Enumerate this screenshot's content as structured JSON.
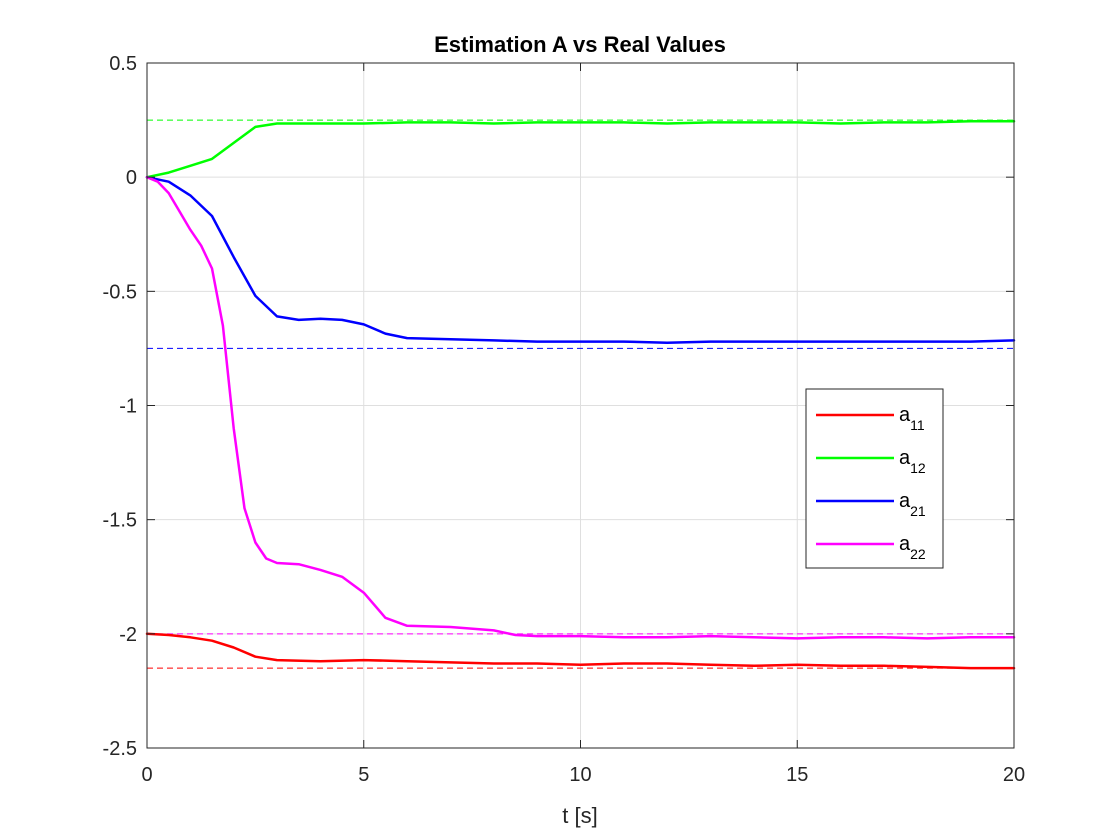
{
  "chart_data": {
    "type": "line",
    "title": "Estimation A vs Real Values",
    "xlabel": "t [s]",
    "ylabel": "",
    "xlim": [
      0,
      20
    ],
    "ylim": [
      -2.5,
      0.5
    ],
    "xticks": [
      "0",
      "5",
      "10",
      "15",
      "20"
    ],
    "yticks": [
      "0.5",
      "0",
      "-0.5",
      "-1",
      "-1.5",
      "-2",
      "-2.5"
    ],
    "grid": true,
    "legend_position": "right",
    "series": [
      {
        "name": "a",
        "subscript": "11",
        "color": "#ff0000",
        "x": [
          0,
          0.5,
          1,
          1.5,
          2,
          2.5,
          3,
          4,
          5,
          6,
          7,
          8,
          9,
          10,
          11,
          12,
          13,
          14,
          15,
          16,
          17,
          18,
          19,
          20
        ],
        "values": [
          -2.0,
          -2.005,
          -2.015,
          -2.03,
          -2.06,
          -2.1,
          -2.115,
          -2.12,
          -2.115,
          -2.12,
          -2.125,
          -2.13,
          -2.13,
          -2.135,
          -2.13,
          -2.13,
          -2.135,
          -2.14,
          -2.135,
          -2.14,
          -2.14,
          -2.145,
          -2.15,
          -2.15
        ]
      },
      {
        "name": "a",
        "subscript": "12",
        "color": "#00ff00",
        "x": [
          0,
          0.5,
          1,
          1.5,
          2,
          2.5,
          3,
          4,
          5,
          6,
          7,
          8,
          9,
          10,
          11,
          12,
          13,
          14,
          15,
          16,
          17,
          18,
          19,
          20
        ],
        "values": [
          0.0,
          0.02,
          0.05,
          0.08,
          0.15,
          0.22,
          0.235,
          0.235,
          0.235,
          0.24,
          0.24,
          0.235,
          0.24,
          0.24,
          0.24,
          0.235,
          0.24,
          0.24,
          0.24,
          0.235,
          0.24,
          0.24,
          0.245,
          0.245
        ]
      },
      {
        "name": "a",
        "subscript": "21",
        "color": "#0000ff",
        "x": [
          0,
          0.5,
          1,
          1.5,
          2,
          2.5,
          3,
          3.5,
          4,
          4.5,
          5,
          5.5,
          6,
          7,
          8,
          9,
          10,
          11,
          12,
          13,
          14,
          15,
          16,
          17,
          18,
          19,
          20
        ],
        "values": [
          0.0,
          -0.02,
          -0.08,
          -0.17,
          -0.35,
          -0.52,
          -0.61,
          -0.625,
          -0.62,
          -0.625,
          -0.645,
          -0.685,
          -0.705,
          -0.71,
          -0.715,
          -0.72,
          -0.72,
          -0.72,
          -0.725,
          -0.72,
          -0.72,
          -0.72,
          -0.72,
          -0.72,
          -0.72,
          -0.72,
          -0.715
        ]
      },
      {
        "name": "a",
        "subscript": "22",
        "color": "#ff00ff",
        "x": [
          0,
          0.25,
          0.5,
          0.75,
          1,
          1.25,
          1.5,
          1.75,
          2,
          2.25,
          2.5,
          2.75,
          3,
          3.5,
          4,
          4.5,
          5,
          5.5,
          6,
          7,
          8,
          8.5,
          9,
          10,
          11,
          12,
          13,
          14,
          15,
          16,
          17,
          18,
          19,
          20
        ],
        "values": [
          0.0,
          -0.02,
          -0.07,
          -0.15,
          -0.23,
          -0.3,
          -0.4,
          -0.65,
          -1.1,
          -1.45,
          -1.6,
          -1.67,
          -1.69,
          -1.695,
          -1.72,
          -1.75,
          -1.82,
          -1.93,
          -1.965,
          -1.97,
          -1.985,
          -2.005,
          -2.01,
          -2.01,
          -2.015,
          -2.015,
          -2.01,
          -2.015,
          -2.02,
          -2.015,
          -2.015,
          -2.02,
          -2.015,
          -2.015
        ]
      }
    ],
    "reference_lines": [
      {
        "series": "a11",
        "value": -2.15,
        "color": "#ff0000",
        "style": "dashed"
      },
      {
        "series": "a12",
        "value": 0.25,
        "color": "#00ff00",
        "style": "dashed"
      },
      {
        "series": "a21",
        "value": -0.75,
        "color": "#0000ff",
        "style": "dashed"
      },
      {
        "series": "a22",
        "value": -2.0,
        "color": "#ff00ff",
        "style": "dashed"
      }
    ]
  }
}
